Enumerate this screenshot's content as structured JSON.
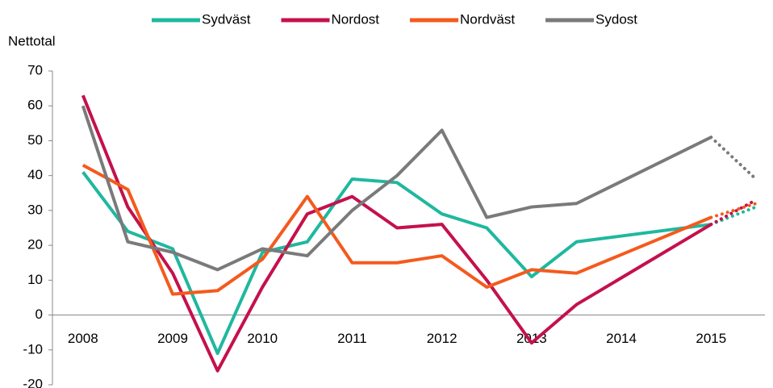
{
  "chart_data": {
    "type": "line",
    "y_label": "Nettotal",
    "x": [
      2008,
      2008.5,
      2009,
      2009.5,
      2010,
      2010.5,
      2011,
      2011.5,
      2012,
      2012.5,
      2013,
      2013.5,
      2015,
      2015.5
    ],
    "xlim": [
      2007.66,
      2015.6
    ],
    "xticks": [
      2008,
      2009,
      2010,
      2011,
      2012,
      2013,
      2014,
      2015
    ],
    "ylim": [
      -20,
      70
    ],
    "yticks": [
      -20,
      -10,
      0,
      10,
      20,
      30,
      40,
      50,
      60,
      70
    ],
    "grid": false,
    "legend": "top",
    "dotted_last_segment": true,
    "series": [
      {
        "name": "Sydväst",
        "color": "#1fb89f",
        "values": [
          41,
          24,
          19,
          -11,
          18,
          21,
          39,
          38,
          29,
          25,
          11,
          21,
          26,
          31
        ]
      },
      {
        "name": "Nordost",
        "color": "#c4114b",
        "values": [
          63,
          31,
          12,
          -16,
          8,
          29,
          34,
          25,
          26,
          10,
          -8,
          3,
          26,
          33
        ]
      },
      {
        "name": "Nordväst",
        "color": "#f45a1d",
        "values": [
          43,
          36,
          6,
          7,
          16,
          34,
          15,
          15,
          17,
          8,
          13,
          12,
          28,
          32
        ]
      },
      {
        "name": "Sydost",
        "color": "#7a7a7a",
        "values": [
          60,
          21,
          18,
          13,
          19,
          17,
          30,
          40,
          53,
          28,
          31,
          32,
          51,
          39
        ]
      }
    ]
  }
}
